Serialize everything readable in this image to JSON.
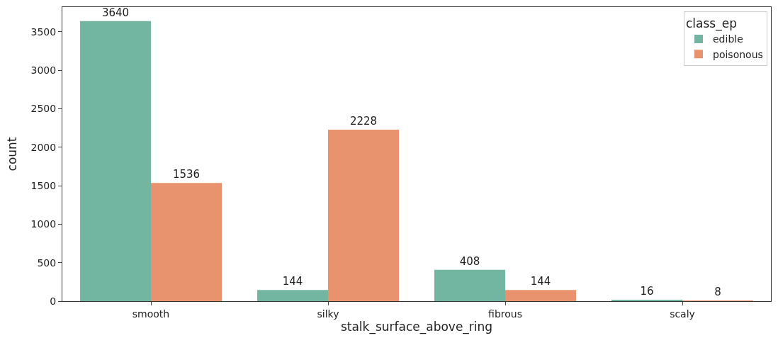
{
  "chart_data": {
    "type": "bar",
    "xlabel": "stalk_surface_above_ring",
    "ylabel": "count",
    "legend_title": "class_ep",
    "categories": [
      "smooth",
      "silky",
      "fibrous",
      "scaly"
    ],
    "series": [
      {
        "name": "edible",
        "color": "#72b6a1",
        "values": [
          3640,
          144,
          408,
          16
        ]
      },
      {
        "name": "poisonous",
        "color": "#e8936d",
        "values": [
          1536,
          2228,
          144,
          8
        ]
      }
    ],
    "ylim": [
      0,
      3822
    ],
    "yticks": [
      0,
      500,
      1000,
      1500,
      2000,
      2500,
      3000,
      3500
    ],
    "data_labels": true,
    "grid": false,
    "legend": "top right"
  }
}
